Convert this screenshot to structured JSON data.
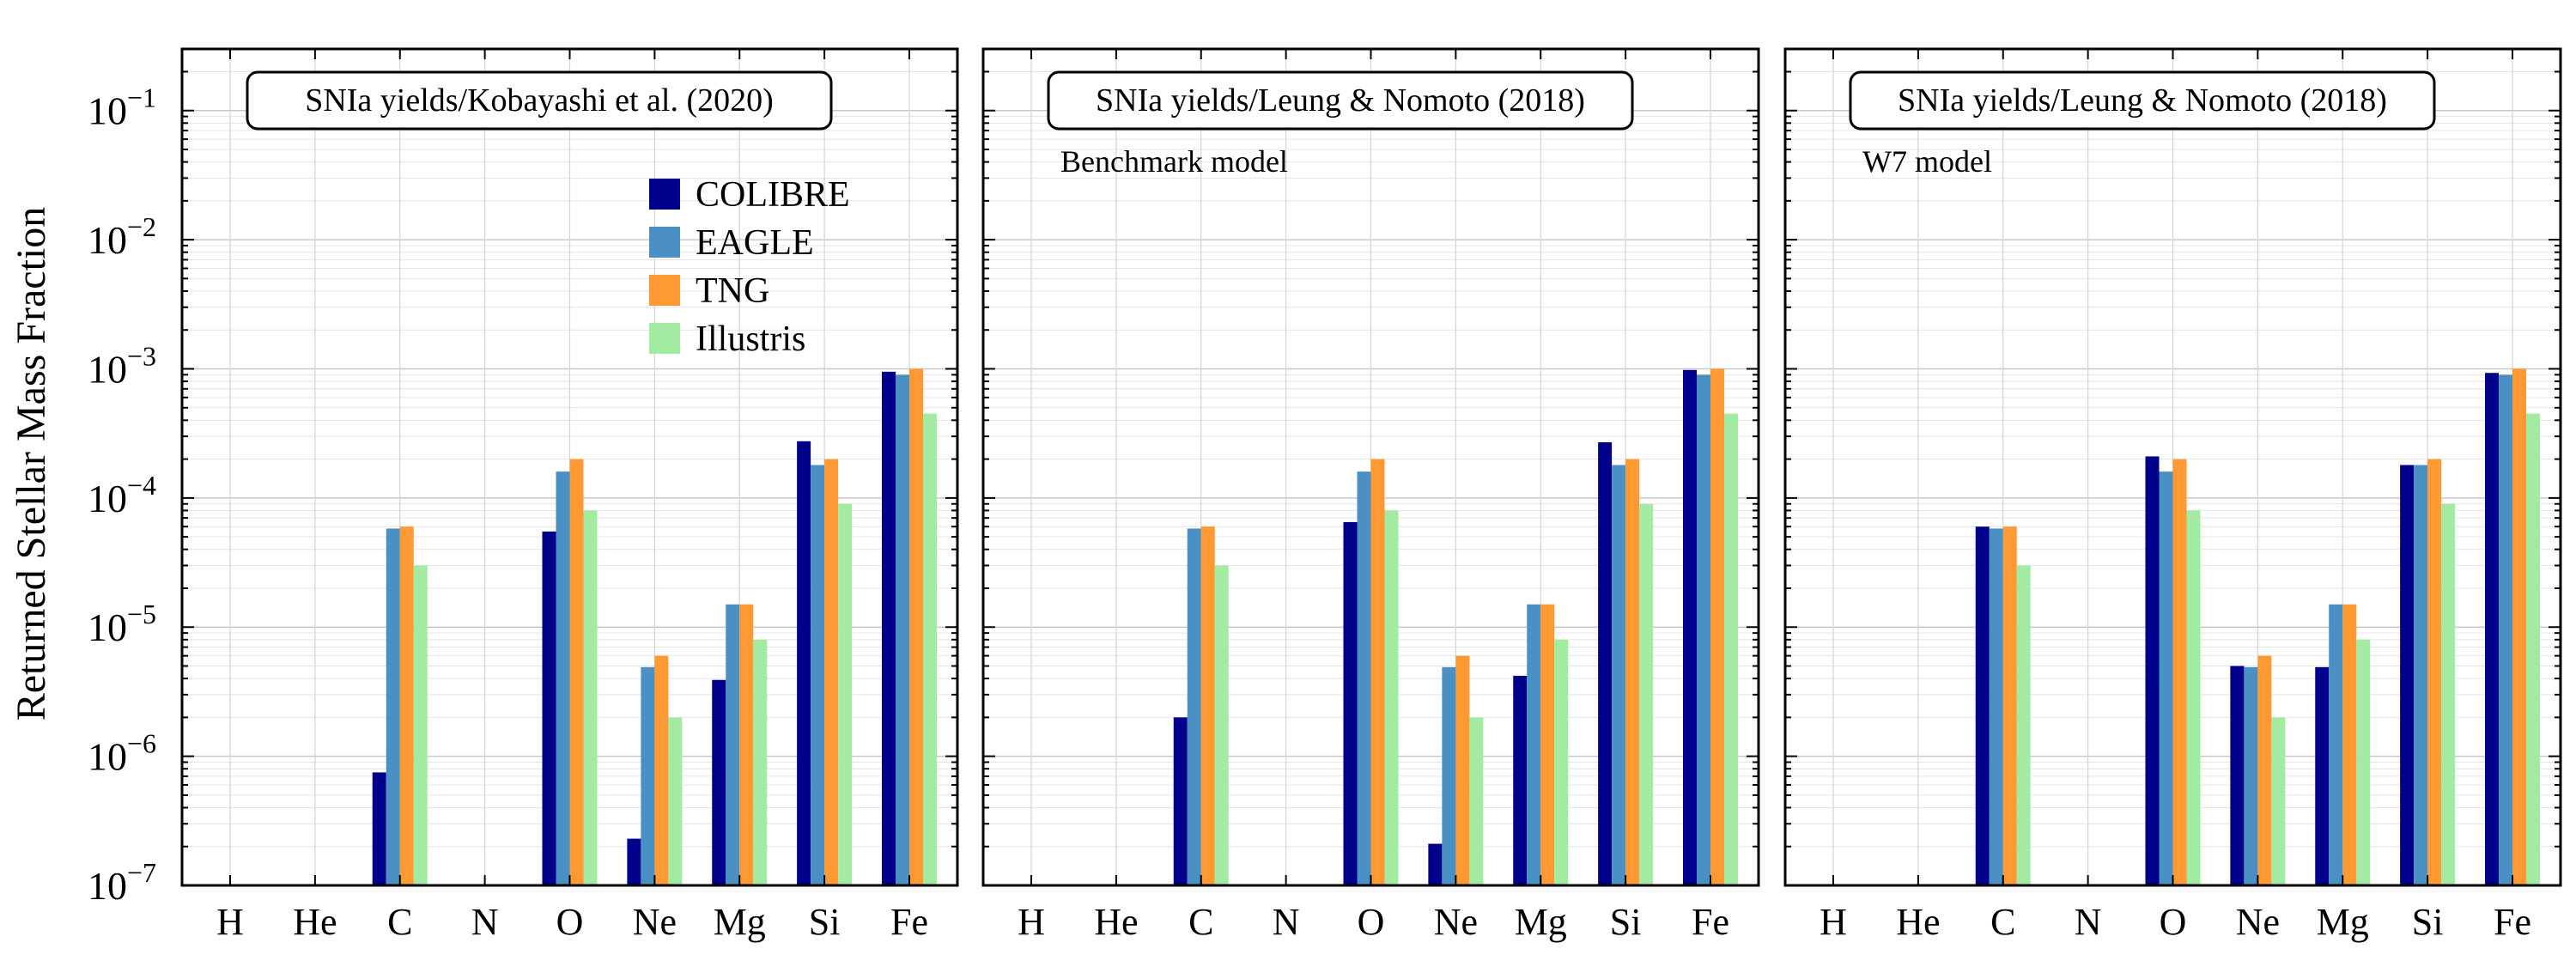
{
  "figure": {
    "ylabel": "Returned Stellar Mass Fraction"
  },
  "chart_data": {
    "type": "bar",
    "yscale": "log",
    "ylim": [
      1e-07,
      0.3
    ],
    "grid": true,
    "categories": [
      "H",
      "He",
      "C",
      "N",
      "O",
      "Ne",
      "Mg",
      "Si",
      "Fe"
    ],
    "y_tick_labels": [
      {
        "value": 1e-07,
        "base": "10",
        "exp": "−7"
      },
      {
        "value": 1e-06,
        "base": "10",
        "exp": "−6"
      },
      {
        "value": 1e-05,
        "base": "10",
        "exp": "−5"
      },
      {
        "value": 0.0001,
        "base": "10",
        "exp": "−4"
      },
      {
        "value": 0.001,
        "base": "10",
        "exp": "−3"
      },
      {
        "value": 0.01,
        "base": "10",
        "exp": "−2"
      },
      {
        "value": 0.1,
        "base": "10",
        "exp": "−1"
      }
    ],
    "legend": {
      "placement": "upper-right (first panel)",
      "entries": [
        {
          "name": "COLIBRE",
          "color": "#00008b"
        },
        {
          "name": "EAGLE",
          "color": "#4a90c4"
        },
        {
          "name": "TNG",
          "color": "#ff9933"
        },
        {
          "name": "Illustris",
          "color": "#a3eba3"
        }
      ]
    },
    "panels": [
      {
        "title": "SNIa yields/Kobayashi et al. (2020)",
        "subtitle": "",
        "series": [
          {
            "name": "COLIBRE",
            "color": "#00008b",
            "values": [
              null,
              null,
              7.5e-07,
              null,
              5.5e-05,
              2.3e-07,
              3.9e-06,
              0.000275,
              0.00095
            ]
          },
          {
            "name": "EAGLE",
            "color": "#4a90c4",
            "values": [
              null,
              null,
              5.8e-05,
              null,
              0.00016,
              4.9e-06,
              1.5e-05,
              0.00018,
              0.0009
            ]
          },
          {
            "name": "TNG",
            "color": "#ff9933",
            "values": [
              null,
              null,
              6e-05,
              null,
              0.0002,
              6e-06,
              1.5e-05,
              0.0002,
              0.001
            ]
          },
          {
            "name": "Illustris",
            "color": "#a3eba3",
            "values": [
              null,
              null,
              3e-05,
              null,
              8e-05,
              2e-06,
              8e-06,
              9e-05,
              0.00045
            ]
          }
        ]
      },
      {
        "title": "SNIa yields/Leung & Nomoto (2018)",
        "subtitle": "Benchmark model",
        "series": [
          {
            "name": "COLIBRE",
            "color": "#00008b",
            "values": [
              null,
              null,
              2e-06,
              null,
              6.5e-05,
              2.1e-07,
              4.2e-06,
              0.00027,
              0.00098
            ]
          },
          {
            "name": "EAGLE",
            "color": "#4a90c4",
            "values": [
              null,
              null,
              5.8e-05,
              null,
              0.00016,
              4.9e-06,
              1.5e-05,
              0.00018,
              0.0009
            ]
          },
          {
            "name": "TNG",
            "color": "#ff9933",
            "values": [
              null,
              null,
              6e-05,
              null,
              0.0002,
              6e-06,
              1.5e-05,
              0.0002,
              0.001
            ]
          },
          {
            "name": "Illustris",
            "color": "#a3eba3",
            "values": [
              null,
              null,
              3e-05,
              null,
              8e-05,
              2e-06,
              8e-06,
              9e-05,
              0.00045
            ]
          }
        ]
      },
      {
        "title": "SNIa yields/Leung & Nomoto (2018)",
        "subtitle": "W7 model",
        "series": [
          {
            "name": "COLIBRE",
            "color": "#00008b",
            "values": [
              null,
              null,
              6e-05,
              null,
              0.00021,
              5e-06,
              4.9e-06,
              0.00018,
              0.00093
            ]
          },
          {
            "name": "EAGLE",
            "color": "#4a90c4",
            "values": [
              null,
              null,
              5.8e-05,
              null,
              0.00016,
              4.9e-06,
              1.5e-05,
              0.00018,
              0.0009
            ]
          },
          {
            "name": "TNG",
            "color": "#ff9933",
            "values": [
              null,
              null,
              6e-05,
              null,
              0.0002,
              6e-06,
              1.5e-05,
              0.0002,
              0.001
            ]
          },
          {
            "name": "Illustris",
            "color": "#a3eba3",
            "values": [
              null,
              null,
              3e-05,
              null,
              8e-05,
              2e-06,
              8e-06,
              9e-05,
              0.00045
            ]
          }
        ]
      }
    ]
  }
}
